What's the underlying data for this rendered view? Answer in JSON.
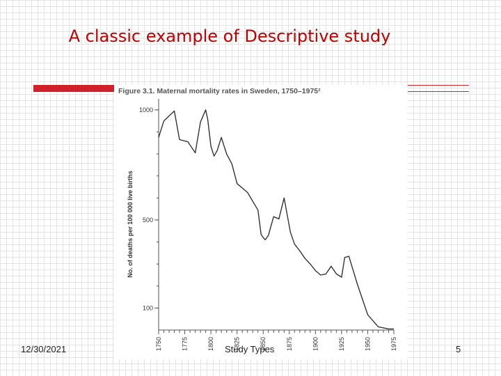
{
  "slide": {
    "title": "A classic example of Descriptive study",
    "footer_date": "12/30/2021",
    "footer_center": "Study Types",
    "page_number": "5"
  },
  "colors": {
    "title": "#c00000",
    "rule": "#d0202a",
    "line": "#333333"
  },
  "chart_data": {
    "type": "line",
    "title": "Figure 3.1. Maternal mortality rates in Sweden, 1750–1975²",
    "xlabel": "",
    "ylabel": "No. of deaths per 100 000 live births",
    "xlim": [
      1750,
      1975
    ],
    "ylim": [
      0,
      1050
    ],
    "x_ticks": [
      1750,
      1775,
      1800,
      1825,
      1850,
      1875,
      1900,
      1925,
      1950,
      1975
    ],
    "x_tick_labels": [
      "1750",
      "1775",
      "1800",
      "1825",
      "1850",
      "1875",
      "1900",
      "1925",
      "1950",
      "1975"
    ],
    "y_ticks": [
      100,
      500,
      1000
    ],
    "y_tick_labels": [
      "100",
      "500",
      "1000"
    ],
    "grid": false,
    "series": [
      {
        "x": [
          1750,
          1755,
          1765,
          1770,
          1778,
          1785,
          1790,
          1795,
          1797,
          1800,
          1803,
          1806,
          1810,
          1815,
          1820,
          1825,
          1835,
          1845,
          1848,
          1850,
          1852,
          1855,
          1860,
          1865,
          1870,
          1876,
          1880,
          1885,
          1890,
          1895,
          1900,
          1905,
          1910,
          1915,
          1920,
          1925,
          1928,
          1932,
          1940,
          1950,
          1960,
          1970,
          1975
        ],
        "y": [
          875,
          950,
          995,
          865,
          855,
          805,
          945,
          1000,
          955,
          835,
          790,
          815,
          875,
          800,
          755,
          665,
          625,
          545,
          435,
          420,
          410,
          430,
          515,
          505,
          600,
          445,
          390,
          360,
          325,
          300,
          270,
          250,
          255,
          290,
          255,
          240,
          330,
          335,
          210,
          70,
          15,
          5,
          5
        ]
      }
    ]
  }
}
